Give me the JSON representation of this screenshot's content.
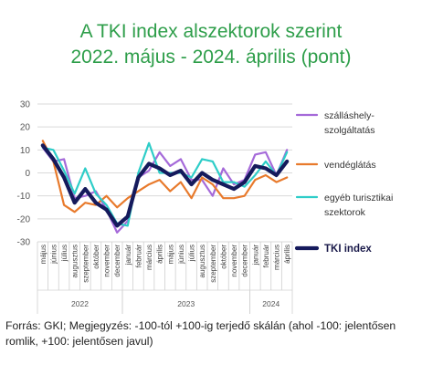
{
  "title_line1": "A TKI index alszektorok szerint",
  "title_line2": "2022. május - 2024. április (pont)",
  "note": "Forrás: GKI; Megjegyzés: -100-tól +100-ig terjedő skálán (ahol -100: jelentősen romlik, +100: jelentősen javul)",
  "chart_data": {
    "type": "line",
    "ylim": [
      -30,
      30
    ],
    "yticks": [
      30,
      20,
      10,
      0,
      -10,
      -20,
      -30
    ],
    "grid": true,
    "legend_position": "right",
    "x": [
      "május",
      "június",
      "július",
      "augusztus",
      "szeptember",
      "október",
      "november",
      "december",
      "január",
      "február",
      "március",
      "április",
      "május",
      "június",
      "július",
      "augusztus",
      "szeptember",
      "október",
      "november",
      "december",
      "január",
      "február",
      "március",
      "április"
    ],
    "year_groups": [
      {
        "label": "2022",
        "count": 8
      },
      {
        "label": "2023",
        "count": 12
      },
      {
        "label": "2024",
        "count": 4
      }
    ],
    "series": [
      {
        "name": "szálláshely-szolgáltatás",
        "legend_lines": [
          "szálláshely-",
          "szolgáltatás"
        ],
        "color": "#a56ad9",
        "width": 2.2,
        "values": [
          11,
          5,
          6,
          -11,
          -10,
          -8,
          -16,
          -26,
          -21,
          -2,
          1,
          9,
          3,
          6,
          -3,
          -3,
          -10,
          2,
          -5,
          -3,
          8,
          9,
          -1,
          10
        ]
      },
      {
        "name": "vendéglátás",
        "legend_lines": [
          "vendéglátás"
        ],
        "color": "#e87a2c",
        "width": 2.2,
        "values": [
          14,
          5,
          -14,
          -17,
          -13,
          -14,
          -10,
          -15,
          -11,
          -8,
          -5,
          -3,
          -8,
          -4,
          -11,
          -2,
          -5,
          -11,
          -11,
          -10,
          -3,
          -1,
          -4,
          -2
        ]
      },
      {
        "name": "egyéb turisztikai szektorok",
        "legend_lines": [
          "egyéb turisztikai",
          "szektorok"
        ],
        "color": "#2ecdc8",
        "width": 2.2,
        "values": [
          11,
          10,
          1,
          -9,
          2,
          -9,
          -14,
          -22,
          -23,
          0,
          13,
          0,
          0,
          0,
          -2,
          6,
          5,
          -4,
          -4,
          -6,
          -1,
          5,
          -1,
          9
        ]
      },
      {
        "name": "TKI index",
        "legend_lines": [
          "TKI index"
        ],
        "color": "#151a5c",
        "width": 4.2,
        "values": [
          12,
          6,
          -2,
          -13,
          -7,
          -13,
          -16,
          -23,
          -19,
          -2,
          4,
          2,
          -1,
          1,
          -5,
          0,
          -3,
          -5,
          -7,
          -4,
          3,
          2,
          -1,
          5
        ]
      }
    ]
  }
}
